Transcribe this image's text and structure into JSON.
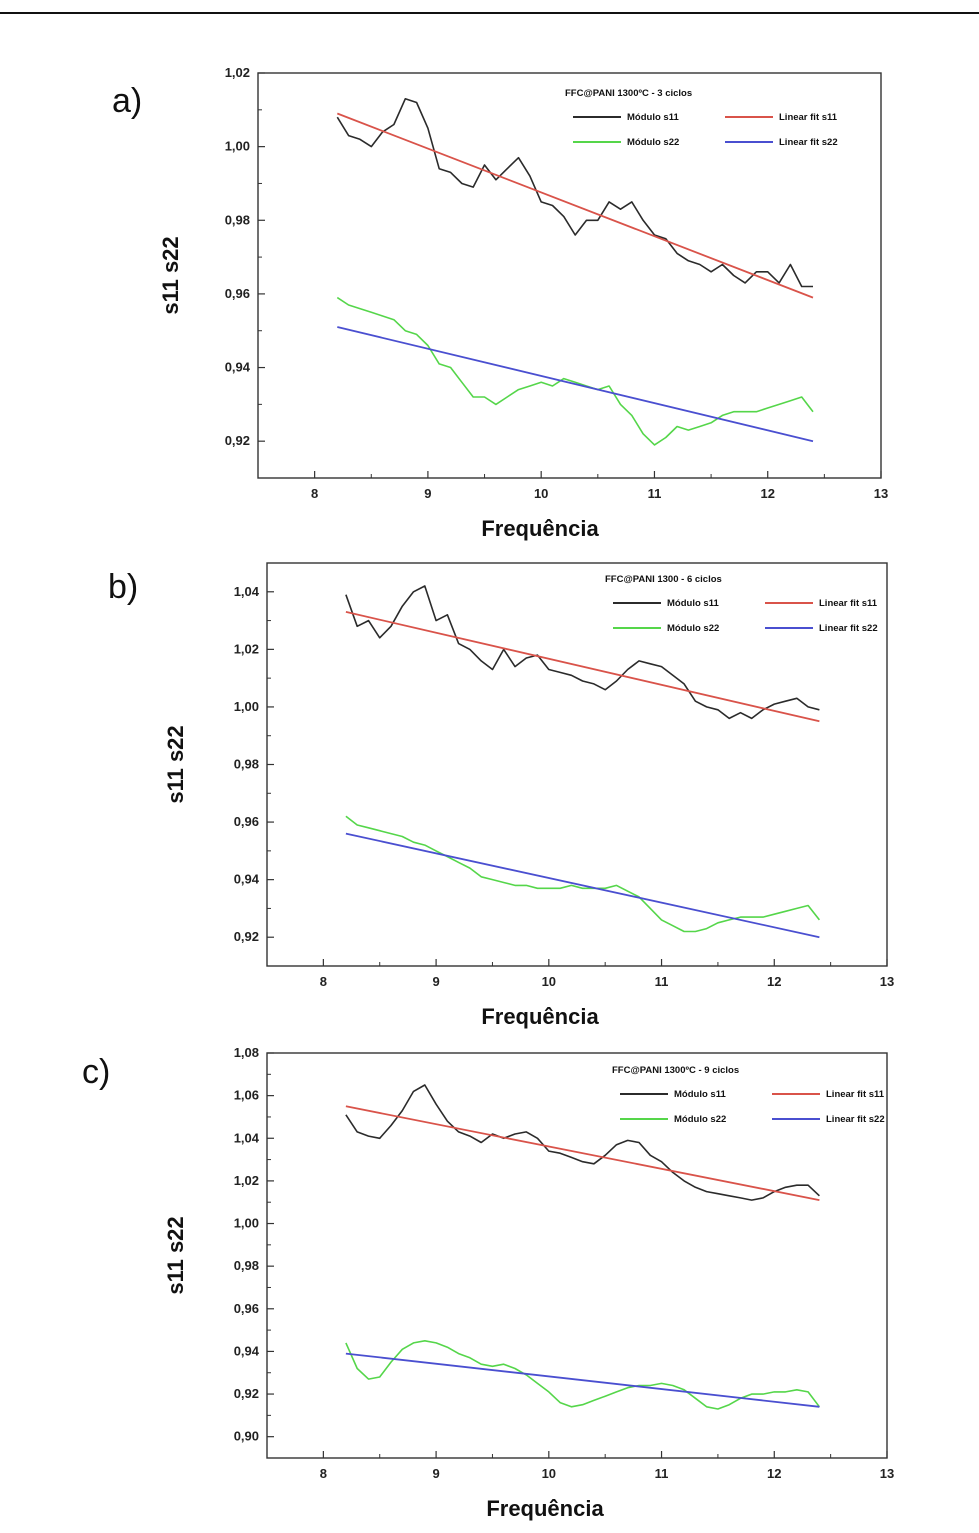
{
  "chart_data": [
    {
      "type": "line",
      "panel_label": "a)",
      "title": "FFC@PANI 1300ºC - 3 ciclos",
      "xlabel": "Frequência",
      "ylabel": "s11 s22",
      "xlim": [
        7.5,
        13
      ],
      "ylim": [
        0.91,
        1.02
      ],
      "xticks": [
        8,
        9,
        10,
        11,
        12,
        13
      ],
      "xtick_labels": [
        "8",
        "9",
        "10",
        "11",
        "12",
        "13"
      ],
      "yticks": [
        0.92,
        0.94,
        0.96,
        0.98,
        1.0,
        1.02
      ],
      "ytick_labels": [
        "0,92",
        "0,94",
        "0,96",
        "0,98",
        "1,00",
        "1,02"
      ],
      "legend_position": "top-right",
      "series": [
        {
          "name": "Módulo s11",
          "color": "#2b2b2b",
          "x": [
            8.2,
            8.3,
            8.4,
            8.5,
            8.6,
            8.7,
            8.8,
            8.9,
            9.0,
            9.1,
            9.2,
            9.3,
            9.4,
            9.5,
            9.6,
            9.7,
            9.8,
            9.9,
            10.0,
            10.1,
            10.2,
            10.3,
            10.4,
            10.5,
            10.6,
            10.7,
            10.8,
            10.9,
            11.0,
            11.1,
            11.2,
            11.3,
            11.4,
            11.5,
            11.6,
            11.7,
            11.8,
            11.9,
            12.0,
            12.1,
            12.2,
            12.3,
            12.4
          ],
          "y": [
            1.008,
            1.003,
            1.002,
            1.0,
            1.004,
            1.006,
            1.013,
            1.012,
            1.005,
            0.994,
            0.993,
            0.99,
            0.989,
            0.995,
            0.991,
            0.994,
            0.997,
            0.992,
            0.985,
            0.984,
            0.981,
            0.976,
            0.98,
            0.98,
            0.985,
            0.983,
            0.985,
            0.98,
            0.976,
            0.975,
            0.971,
            0.969,
            0.968,
            0.966,
            0.968,
            0.965,
            0.963,
            0.966,
            0.966,
            0.963,
            0.968,
            0.962,
            0.962
          ]
        },
        {
          "name": "Linear fit s11",
          "color": "#d9534a",
          "x": [
            8.2,
            12.4
          ],
          "y": [
            1.009,
            0.959
          ]
        },
        {
          "name": "Módulo s22",
          "color": "#55d64a",
          "x": [
            8.2,
            8.3,
            8.4,
            8.5,
            8.6,
            8.7,
            8.8,
            8.9,
            9.0,
            9.1,
            9.2,
            9.3,
            9.4,
            9.5,
            9.6,
            9.7,
            9.8,
            9.9,
            10.0,
            10.1,
            10.2,
            10.3,
            10.4,
            10.5,
            10.6,
            10.7,
            10.8,
            10.9,
            11.0,
            11.1,
            11.2,
            11.3,
            11.4,
            11.5,
            11.6,
            11.7,
            11.8,
            11.9,
            12.0,
            12.1,
            12.2,
            12.3,
            12.4
          ],
          "y": [
            0.959,
            0.957,
            0.956,
            0.955,
            0.954,
            0.953,
            0.95,
            0.949,
            0.946,
            0.941,
            0.94,
            0.936,
            0.932,
            0.932,
            0.93,
            0.932,
            0.934,
            0.935,
            0.936,
            0.935,
            0.937,
            0.936,
            0.935,
            0.934,
            0.935,
            0.93,
            0.927,
            0.922,
            0.919,
            0.921,
            0.924,
            0.923,
            0.924,
            0.925,
            0.927,
            0.928,
            0.928,
            0.928,
            0.929,
            0.93,
            0.931,
            0.932,
            0.928
          ]
        },
        {
          "name": "Linear fit s22",
          "color": "#4a4fd0",
          "x": [
            8.2,
            12.4
          ],
          "y": [
            0.951,
            0.92
          ]
        }
      ]
    },
    {
      "type": "line",
      "panel_label": "b)",
      "title": "FFC@PANI 1300 - 6 ciclos",
      "xlabel": "Frequência",
      "ylabel": "s11 s22",
      "xlim": [
        7.5,
        13
      ],
      "ylim": [
        0.91,
        1.05
      ],
      "xticks": [
        8,
        9,
        10,
        11,
        12,
        13
      ],
      "xtick_labels": [
        "8",
        "9",
        "10",
        "11",
        "12",
        "13"
      ],
      "yticks": [
        0.92,
        0.94,
        0.96,
        0.98,
        1.0,
        1.02,
        1.04
      ],
      "ytick_labels": [
        "0,92",
        "0,94",
        "0,96",
        "0,98",
        "1,00",
        "1,02",
        "1,04"
      ],
      "legend_position": "top-right",
      "series": [
        {
          "name": "Módulo s11",
          "color": "#2b2b2b",
          "x": [
            8.2,
            8.3,
            8.4,
            8.5,
            8.6,
            8.7,
            8.8,
            8.9,
            9.0,
            9.1,
            9.2,
            9.3,
            9.4,
            9.5,
            9.6,
            9.7,
            9.8,
            9.9,
            10.0,
            10.1,
            10.2,
            10.3,
            10.4,
            10.5,
            10.6,
            10.7,
            10.8,
            10.9,
            11.0,
            11.1,
            11.2,
            11.3,
            11.4,
            11.5,
            11.6,
            11.7,
            11.8,
            11.9,
            12.0,
            12.1,
            12.2,
            12.3,
            12.4
          ],
          "y": [
            1.039,
            1.028,
            1.03,
            1.024,
            1.028,
            1.035,
            1.04,
            1.042,
            1.03,
            1.032,
            1.022,
            1.02,
            1.016,
            1.013,
            1.02,
            1.014,
            1.017,
            1.018,
            1.013,
            1.012,
            1.011,
            1.009,
            1.008,
            1.006,
            1.009,
            1.013,
            1.016,
            1.015,
            1.014,
            1.011,
            1.008,
            1.002,
            1.0,
            0.999,
            0.996,
            0.998,
            0.996,
            0.999,
            1.001,
            1.002,
            1.003,
            1.0,
            0.999
          ]
        },
        {
          "name": "Linear fit s11",
          "color": "#d9534a",
          "x": [
            8.2,
            12.4
          ],
          "y": [
            1.033,
            0.995
          ]
        },
        {
          "name": "Módulo s22",
          "color": "#55d64a",
          "x": [
            8.2,
            8.3,
            8.4,
            8.5,
            8.6,
            8.7,
            8.8,
            8.9,
            9.0,
            9.1,
            9.2,
            9.3,
            9.4,
            9.5,
            9.6,
            9.7,
            9.8,
            9.9,
            10.0,
            10.1,
            10.2,
            10.3,
            10.4,
            10.5,
            10.6,
            10.7,
            10.8,
            10.9,
            11.0,
            11.1,
            11.2,
            11.3,
            11.4,
            11.5,
            11.6,
            11.7,
            11.8,
            11.9,
            12.0,
            12.1,
            12.2,
            12.3,
            12.4
          ],
          "y": [
            0.962,
            0.959,
            0.958,
            0.957,
            0.956,
            0.955,
            0.953,
            0.952,
            0.95,
            0.948,
            0.946,
            0.944,
            0.941,
            0.94,
            0.939,
            0.938,
            0.938,
            0.937,
            0.937,
            0.937,
            0.938,
            0.937,
            0.937,
            0.937,
            0.938,
            0.936,
            0.934,
            0.93,
            0.926,
            0.924,
            0.922,
            0.922,
            0.923,
            0.925,
            0.926,
            0.927,
            0.927,
            0.927,
            0.928,
            0.929,
            0.93,
            0.931,
            0.926
          ]
        },
        {
          "name": "Linear fit s22",
          "color": "#4a4fd0",
          "x": [
            8.2,
            12.4
          ],
          "y": [
            0.956,
            0.92
          ]
        }
      ]
    },
    {
      "type": "line",
      "panel_label": "c)",
      "title": "FFC@PANI 1300ºC - 9 ciclos",
      "xlabel": "Frequência",
      "ylabel": "s11 s22",
      "xlim": [
        7.5,
        13
      ],
      "ylim": [
        0.89,
        1.08
      ],
      "xticks": [
        8,
        9,
        10,
        11,
        12,
        13
      ],
      "xtick_labels": [
        "8",
        "9",
        "10",
        "11",
        "12",
        "13"
      ],
      "yticks": [
        0.9,
        0.92,
        0.94,
        0.96,
        0.98,
        1.0,
        1.02,
        1.04,
        1.06,
        1.08
      ],
      "ytick_labels": [
        "0,90",
        "0,92",
        "0,94",
        "0,96",
        "0,98",
        "1,00",
        "1,02",
        "1,04",
        "1,06",
        "1,08"
      ],
      "legend_position": "top-right",
      "series": [
        {
          "name": "Módulo s11",
          "color": "#2b2b2b",
          "x": [
            8.2,
            8.3,
            8.4,
            8.5,
            8.6,
            8.7,
            8.8,
            8.9,
            9.0,
            9.1,
            9.2,
            9.3,
            9.4,
            9.5,
            9.6,
            9.7,
            9.8,
            9.9,
            10.0,
            10.1,
            10.2,
            10.3,
            10.4,
            10.5,
            10.6,
            10.7,
            10.8,
            10.9,
            11.0,
            11.1,
            11.2,
            11.3,
            11.4,
            11.5,
            11.6,
            11.7,
            11.8,
            11.9,
            12.0,
            12.1,
            12.2,
            12.3,
            12.4
          ],
          "y": [
            1.051,
            1.043,
            1.041,
            1.04,
            1.046,
            1.053,
            1.062,
            1.065,
            1.056,
            1.048,
            1.043,
            1.041,
            1.038,
            1.042,
            1.04,
            1.042,
            1.043,
            1.04,
            1.034,
            1.033,
            1.031,
            1.029,
            1.028,
            1.032,
            1.037,
            1.039,
            1.038,
            1.032,
            1.029,
            1.024,
            1.02,
            1.017,
            1.015,
            1.014,
            1.013,
            1.012,
            1.011,
            1.012,
            1.015,
            1.017,
            1.018,
            1.018,
            1.013
          ]
        },
        {
          "name": "Linear fit s11",
          "color": "#d9534a",
          "x": [
            8.2,
            12.4
          ],
          "y": [
            1.055,
            1.011
          ]
        },
        {
          "name": "Módulo s22",
          "color": "#55d64a",
          "x": [
            8.2,
            8.3,
            8.4,
            8.5,
            8.6,
            8.7,
            8.8,
            8.9,
            9.0,
            9.1,
            9.2,
            9.3,
            9.4,
            9.5,
            9.6,
            9.7,
            9.8,
            9.9,
            10.0,
            10.1,
            10.2,
            10.3,
            10.4,
            10.5,
            10.6,
            10.7,
            10.8,
            10.9,
            11.0,
            11.1,
            11.2,
            11.3,
            11.4,
            11.5,
            11.6,
            11.7,
            11.8,
            11.9,
            12.0,
            12.1,
            12.2,
            12.3,
            12.4
          ],
          "y": [
            0.944,
            0.932,
            0.927,
            0.928,
            0.935,
            0.941,
            0.944,
            0.945,
            0.944,
            0.942,
            0.939,
            0.937,
            0.934,
            0.933,
            0.934,
            0.932,
            0.929,
            0.925,
            0.921,
            0.916,
            0.914,
            0.915,
            0.917,
            0.919,
            0.921,
            0.923,
            0.924,
            0.924,
            0.925,
            0.924,
            0.922,
            0.918,
            0.914,
            0.913,
            0.915,
            0.918,
            0.92,
            0.92,
            0.921,
            0.921,
            0.922,
            0.921,
            0.914
          ]
        },
        {
          "name": "Linear fit s22",
          "color": "#4a4fd0",
          "x": [
            8.2,
            12.4
          ],
          "y": [
            0.939,
            0.914
          ]
        }
      ]
    }
  ]
}
